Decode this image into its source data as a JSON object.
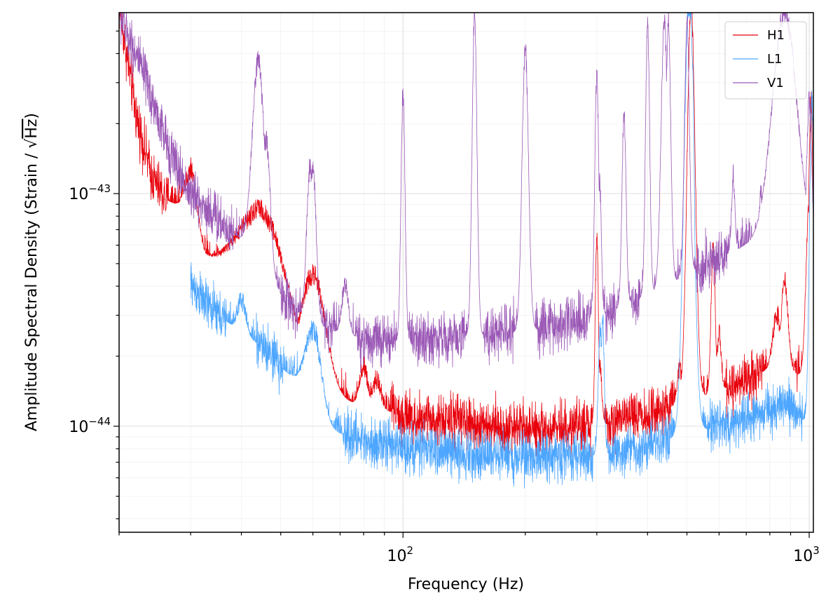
{
  "chart_data": {
    "type": "line",
    "xscale": "log",
    "yscale": "log",
    "xlabel": "Frequency (Hz)",
    "ylabel_text": "Amplitude Spectral Density (Strain / ",
    "ylabel_unit": "Hz",
    "ylabel_close": ")",
    "xlim": [
      20,
      1024
    ],
    "ylim": [
      3.5e-45,
      6e-43
    ],
    "grid": true,
    "legend_position": "top-right",
    "x_major_ticks": [
      {
        "value": 100,
        "base": "10",
        "exp": "2"
      },
      {
        "value": 1000,
        "base": "10",
        "exp": "3"
      }
    ],
    "y_major_ticks": [
      {
        "value": 1e-44,
        "base": "10",
        "exp": "−44"
      },
      {
        "value": 1e-43,
        "base": "10",
        "exp": "−43"
      }
    ],
    "series": [
      {
        "name": "H1",
        "color": "#e8000b",
        "noise": 0.055,
        "baseline": [
          [
            20,
            6.5e-43
          ],
          [
            22,
            2.2e-43
          ],
          [
            24,
            1.2e-43
          ],
          [
            26,
            9.5e-44
          ],
          [
            29,
            8.5e-44
          ],
          [
            30,
            6.2e-44
          ],
          [
            33,
            5.2e-44
          ],
          [
            38,
            4.2e-44
          ],
          [
            45,
            3e-44
          ],
          [
            50,
            2.2e-44
          ],
          [
            55,
            1.8e-44
          ],
          [
            60,
            1.6e-44
          ],
          [
            62,
            1.45e-44
          ],
          [
            70,
            1.3e-44
          ],
          [
            85,
            1.2e-44
          ],
          [
            100,
            1.12e-44
          ],
          [
            150,
            1.02e-44
          ],
          [
            200,
            9.8e-45
          ],
          [
            300,
            1e-44
          ],
          [
            400,
            1.12e-44
          ],
          [
            500,
            1.28e-44
          ],
          [
            600,
            1.42e-44
          ],
          [
            700,
            1.6e-44
          ],
          [
            850,
            1.85e-44
          ],
          [
            950,
            1.65e-44
          ],
          [
            1024,
            1.4e-44
          ]
        ],
        "lines": [
          [
            30,
            1.28e-43,
            0.015
          ],
          [
            40,
            4.4e-44,
            0.01
          ],
          [
            44,
            8.5e-44,
            0.06
          ],
          [
            60,
            4.5e-44,
            0.03
          ],
          [
            80,
            1.8e-44,
            0.01
          ],
          [
            86,
            1.6e-44,
            0.01
          ],
          [
            300,
            6.5e-44,
            0.004
          ],
          [
            305,
            1.8e-44,
            0.005
          ],
          [
            480,
            1.8e-44,
            0.006
          ],
          [
            512,
            6.5e-43,
            0.01
          ],
          [
            515,
            2.5e-43,
            0.006
          ],
          [
            580,
            6e-44,
            0.005
          ],
          [
            600,
            2.5e-44,
            0.005
          ],
          [
            833,
            3e-44,
            0.01
          ],
          [
            870,
            4.3e-44,
            0.008
          ],
          [
            1000,
            9e-44,
            0.008
          ],
          [
            1010,
            2.5e-43,
            0.006
          ]
        ]
      },
      {
        "name": "L1",
        "color": "#4da6ff",
        "noise": 0.05,
        "baseline": [
          [
            30,
            4.1e-44
          ],
          [
            33,
            3.3e-44
          ],
          [
            38,
            2.7e-44
          ],
          [
            45,
            2.2e-44
          ],
          [
            50,
            1.8e-44
          ],
          [
            55,
            1.55e-44
          ],
          [
            60,
            1.4e-44
          ],
          [
            62,
            1e-44
          ],
          [
            70,
            9.3e-45
          ],
          [
            85,
            8.5e-45
          ],
          [
            100,
            8.1e-45
          ],
          [
            150,
            7.6e-45
          ],
          [
            200,
            7.4e-45
          ],
          [
            300,
            7.5e-45
          ],
          [
            400,
            8.2e-45
          ],
          [
            500,
            9.3e-45
          ],
          [
            600,
            1e-44
          ],
          [
            700,
            1.08e-44
          ],
          [
            850,
            1.25e-44
          ],
          [
            950,
            1.12e-44
          ],
          [
            1024,
            9e-45
          ]
        ],
        "lines": [
          [
            40,
            3.5e-44,
            0.01
          ],
          [
            60,
            2.6e-44,
            0.02
          ],
          [
            306,
            2.6e-44,
            0.005
          ],
          [
            310,
            3e-44,
            0.004
          ],
          [
            505,
            6.5e-43,
            0.012
          ],
          [
            510,
            6.5e-43,
            0.008
          ],
          [
            515,
            4e-43,
            0.006
          ],
          [
            1015,
            2.5e-43,
            0.006
          ]
        ]
      },
      {
        "name": "V1",
        "color": "#9b59b6",
        "noise": 0.055,
        "baseline": [
          [
            20,
            6e-43
          ],
          [
            22,
            4e-43
          ],
          [
            24,
            2.6e-43
          ],
          [
            26,
            1.7e-43
          ],
          [
            28,
            1.25e-43
          ],
          [
            30,
            1e-43
          ],
          [
            35,
            7.8e-44
          ],
          [
            40,
            6.3e-44
          ],
          [
            45,
            5e-44
          ],
          [
            50,
            3.7e-44
          ],
          [
            55,
            3.1e-44
          ],
          [
            60,
            2.8e-44
          ],
          [
            70,
            2.5e-44
          ],
          [
            85,
            2.35e-44
          ],
          [
            100,
            2.3e-44
          ],
          [
            120,
            2.4e-44
          ],
          [
            150,
            2.45e-44
          ],
          [
            200,
            2.55e-44
          ],
          [
            250,
            2.75e-44
          ],
          [
            300,
            2.95e-44
          ],
          [
            350,
            3.3e-44
          ],
          [
            400,
            3.7e-44
          ],
          [
            450,
            4.05e-44
          ],
          [
            500,
            4.5e-44
          ],
          [
            600,
            5.3e-44
          ],
          [
            700,
            6e-44
          ],
          [
            850,
            6.8e-44
          ],
          [
            950,
            6.3e-44
          ],
          [
            1024,
            5.5e-44
          ]
        ],
        "lines": [
          [
            40,
            5.5e-44,
            0.005
          ],
          [
            44,
            3.7e-43,
            0.015
          ],
          [
            46,
            1.7e-43,
            0.01
          ],
          [
            59,
            1.3e-43,
            0.008
          ],
          [
            60,
            1.3e-43,
            0.008
          ],
          [
            72,
            4.1e-44,
            0.008
          ],
          [
            100,
            2.75e-43,
            0.005
          ],
          [
            150,
            6e-43,
            0.006
          ],
          [
            200,
            4.2e-43,
            0.008
          ],
          [
            300,
            3.2e-43,
            0.005
          ],
          [
            305,
            1.1e-43,
            0.004
          ],
          [
            350,
            2.2e-43,
            0.005
          ],
          [
            400,
            5.5e-43,
            0.005
          ],
          [
            440,
            5.5e-43,
            0.008
          ],
          [
            450,
            5.5e-43,
            0.006
          ],
          [
            500,
            5.5e-43,
            0.006
          ],
          [
            650,
            1.2e-43,
            0.004
          ],
          [
            760,
            1e-43,
            0.004
          ],
          [
            870,
            6e-43,
            0.03
          ],
          [
            1000,
            2.5e-43,
            0.006
          ]
        ]
      }
    ]
  }
}
